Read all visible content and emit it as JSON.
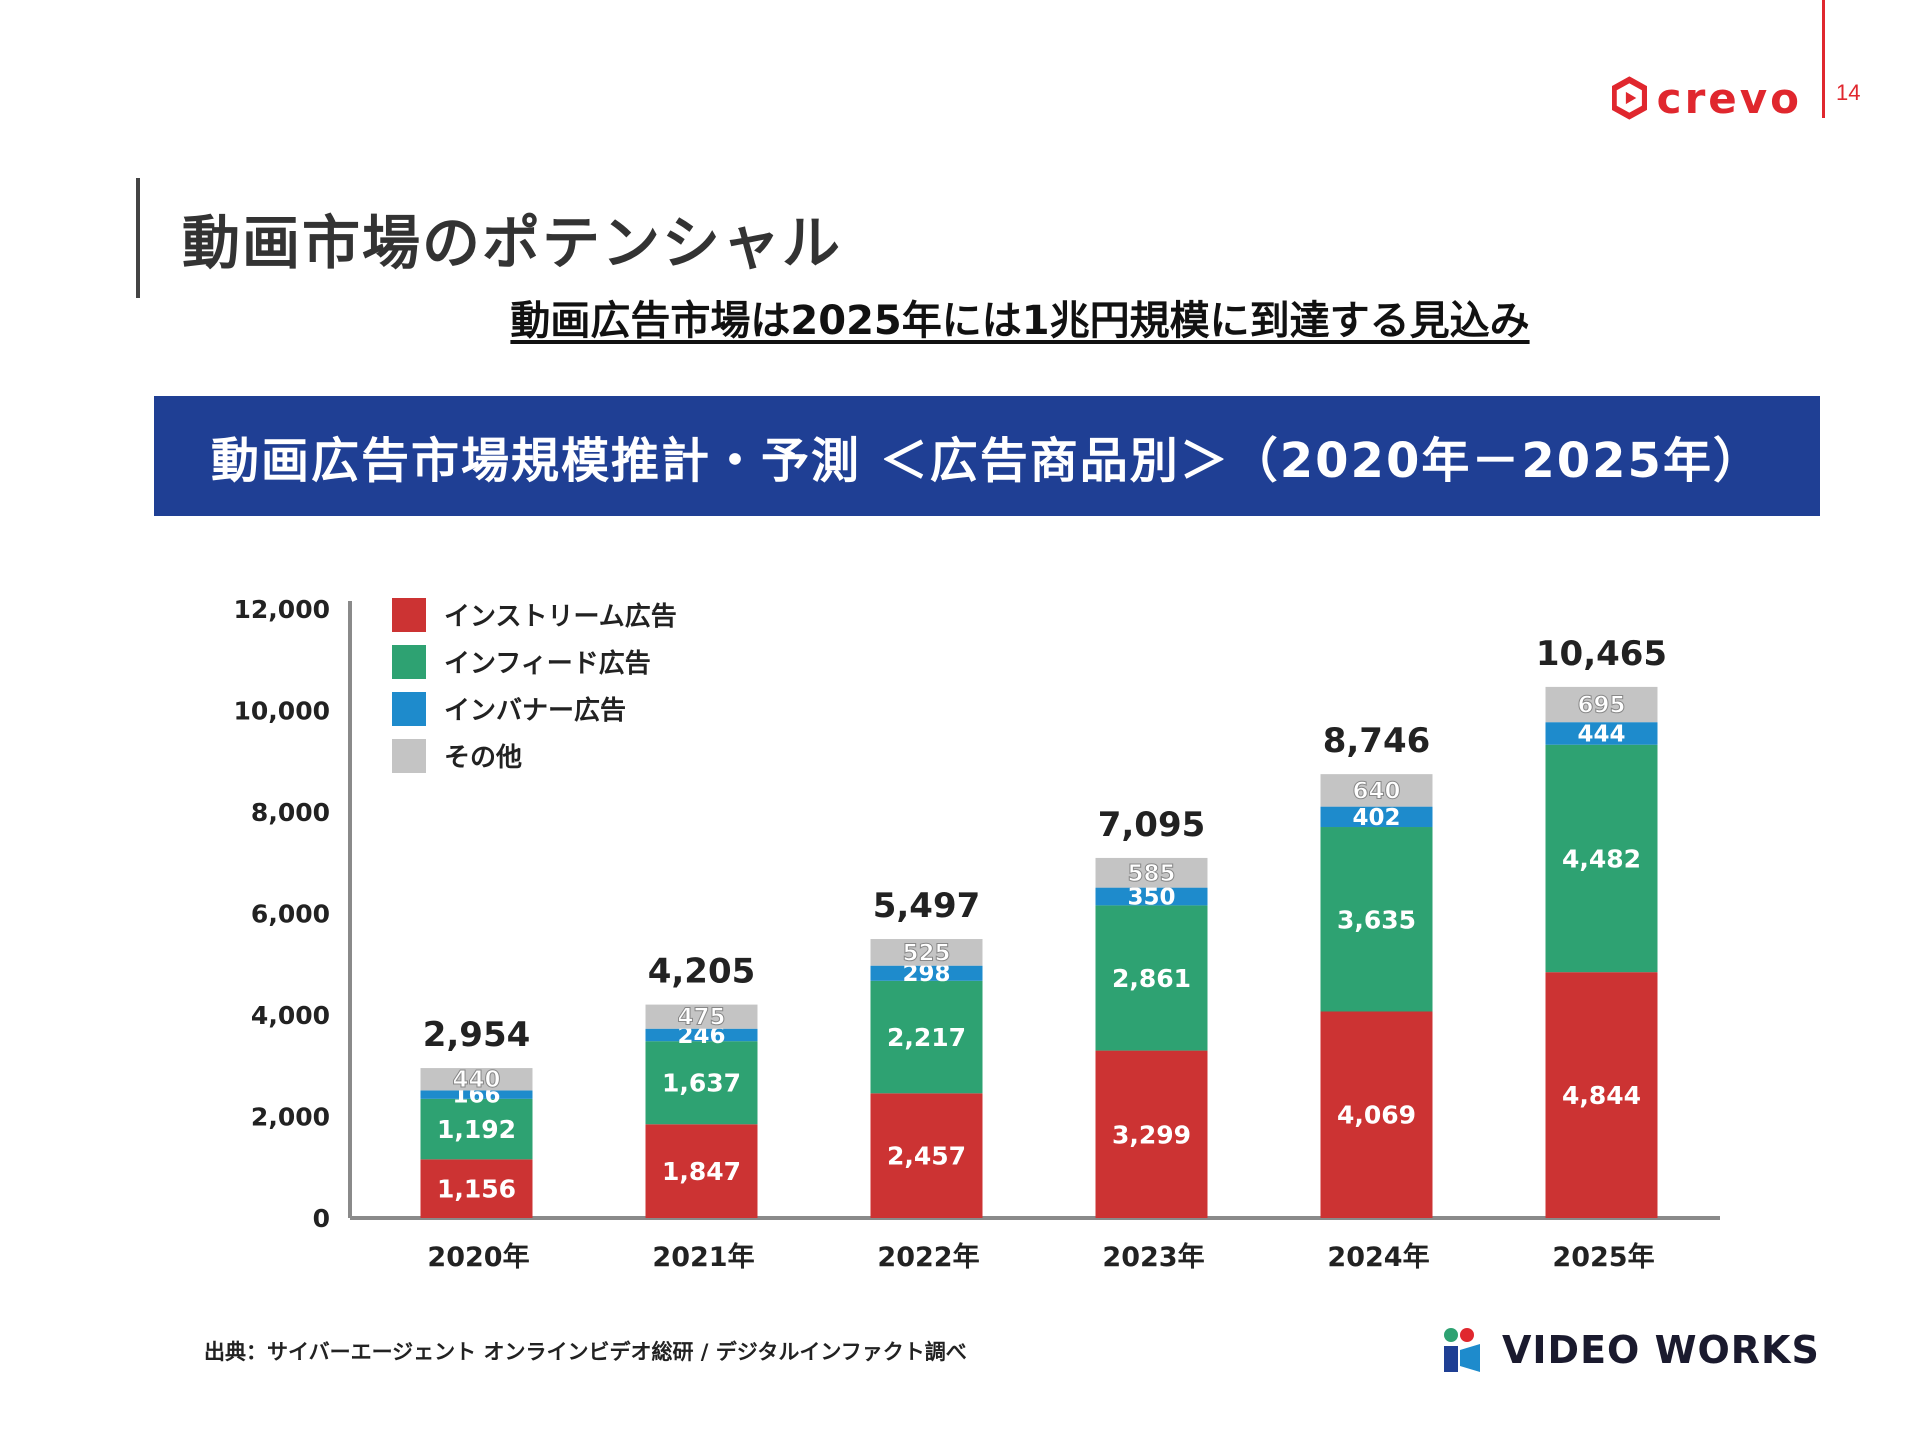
{
  "header": {
    "brand": "crevo",
    "page_number": "14",
    "brand_color": "#e0272e"
  },
  "page_title": "動画市場のポテンシャル",
  "subtitle": "動画広告市場は2025年には1兆円規模に到達する見込み",
  "banner": {
    "text": "動画広告市場規模推計・予測 ＜広告商品別＞（2020年－2025年）",
    "color": "#1f3f94"
  },
  "source": "出典：サイバーエージェント オンラインビデオ総研 / デジタルインファクト調べ",
  "footer_logo": "VIDEO WORKS",
  "chart_data": {
    "type": "bar",
    "stacked": true,
    "categories": [
      "2020年",
      "2021年",
      "2022年",
      "2023年",
      "2024年",
      "2025年"
    ],
    "series": [
      {
        "name": "インストリーム広告",
        "color": "#cc3333",
        "values": [
          1156,
          1847,
          2457,
          3299,
          4069,
          4844
        ]
      },
      {
        "name": "インフィード広告",
        "color": "#2ea272",
        "values": [
          1192,
          1637,
          2217,
          2861,
          3635,
          4482
        ]
      },
      {
        "name": "インバナー広告",
        "color": "#1e8bcc",
        "values": [
          166,
          246,
          298,
          350,
          402,
          444
        ]
      },
      {
        "name": "その他",
        "color": "#c4c4c4",
        "values": [
          440,
          475,
          525,
          585,
          640,
          695
        ]
      }
    ],
    "segment_labels": [
      [
        "1,156",
        "1,847",
        "2,457",
        "3,299",
        "4,069",
        "4,844"
      ],
      [
        "1,192",
        "1,637",
        "2,217",
        "2,861",
        "3,635",
        "4,482"
      ],
      [
        "166",
        "246",
        "298",
        "350",
        "402",
        "444"
      ],
      [
        "440",
        "475",
        "525",
        "585",
        "640",
        "695"
      ]
    ],
    "totals": [
      2954,
      4205,
      5497,
      7095,
      8746,
      10465
    ],
    "total_labels": [
      "2,954",
      "4,205",
      "5,497",
      "7,095",
      "8,746",
      "10,465"
    ],
    "yticks": [
      0,
      2000,
      4000,
      6000,
      8000,
      10000,
      12000
    ],
    "ytick_labels": [
      "0",
      "2,000",
      "4,000",
      "6,000",
      "8,000",
      "10,000",
      "12,000"
    ],
    "ylim": [
      0,
      12000
    ],
    "legend_position": "top-left",
    "grid": false
  }
}
